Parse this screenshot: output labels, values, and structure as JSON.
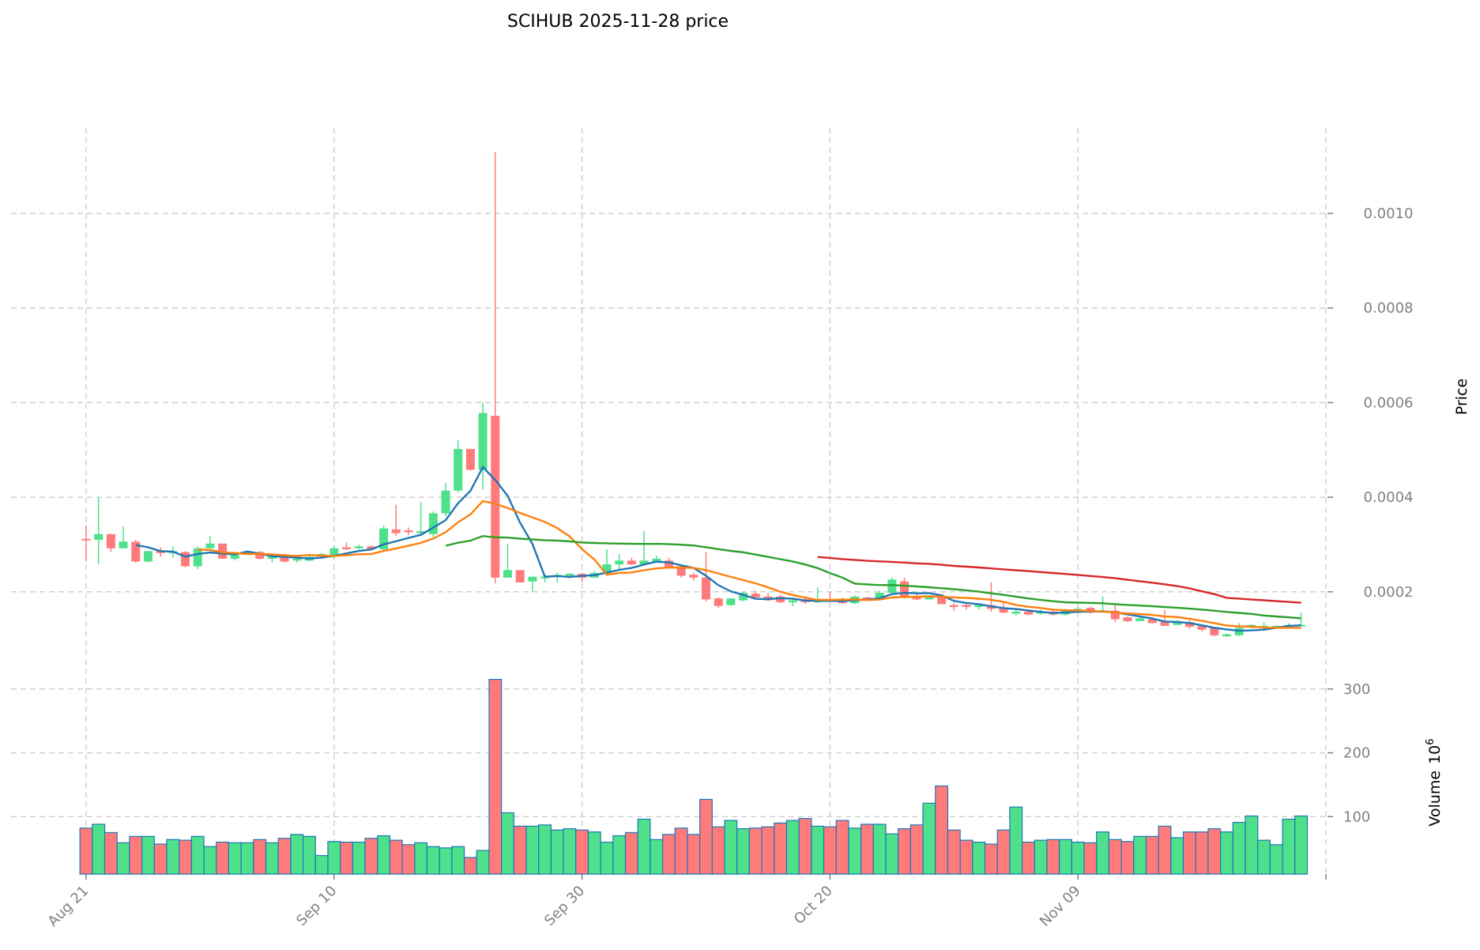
{
  "chart_data": {
    "type": "candlestick",
    "title": "SCIHUB  2025-11-28  price",
    "ylabel": "Price",
    "volume_label": "Volume",
    "volume_exponent": "10",
    "volume_exponent_power": "6",
    "ylim": [
      0,
      0.00118
    ],
    "volume_ylim": [
      10,
      320
    ],
    "start_date": "2025-08-21",
    "x_tick_labels": [
      {
        "index": 0,
        "label": "Aug 21"
      },
      {
        "index": 20,
        "label": "Sep 10"
      },
      {
        "index": 40,
        "label": "Sep 30"
      },
      {
        "index": 60,
        "label": "Oct 20"
      },
      {
        "index": 80,
        "label": "Nov 09"
      }
    ],
    "y_ticks": [
      {
        "value": 0.0002,
        "label": "0.0002"
      },
      {
        "value": 0.0004,
        "label": "0.0004"
      },
      {
        "value": 0.0006,
        "label": "0.0006"
      },
      {
        "value": 0.0008,
        "label": "0.0008"
      },
      {
        "value": 0.001,
        "label": "0.0010"
      }
    ],
    "volume_ticks": [
      {
        "value": 100,
        "label": "100"
      },
      {
        "value": 200,
        "label": "200"
      },
      {
        "value": 300,
        "label": "300"
      }
    ],
    "price_scale": 0.0001,
    "ohlc": [
      [
        3.12,
        3.1,
        3.4,
        2.64
      ],
      [
        3.1,
        3.22,
        4.0,
        2.58
      ],
      [
        3.22,
        2.92,
        3.22,
        2.84
      ],
      [
        2.92,
        3.06,
        3.38,
        2.92
      ],
      [
        3.06,
        2.64,
        3.1,
        2.62
      ],
      [
        2.64,
        2.86,
        2.86,
        2.62
      ],
      [
        2.88,
        2.82,
        2.94,
        2.74
      ],
      [
        2.82,
        2.86,
        2.96,
        2.72
      ],
      [
        2.84,
        2.54,
        2.86,
        2.52
      ],
      [
        2.54,
        2.92,
        2.96,
        2.48
      ],
      [
        2.92,
        3.02,
        3.18,
        2.92
      ],
      [
        3.02,
        2.7,
        3.02,
        2.7
      ],
      [
        2.7,
        2.78,
        2.84,
        2.66
      ],
      [
        2.8,
        2.84,
        2.86,
        2.78
      ],
      [
        2.84,
        2.7,
        2.86,
        2.68
      ],
      [
        2.7,
        2.74,
        2.76,
        2.62
      ],
      [
        2.76,
        2.64,
        2.8,
        2.62
      ],
      [
        2.66,
        2.7,
        2.72,
        2.62
      ],
      [
        2.66,
        2.74,
        2.8,
        2.64
      ],
      [
        2.76,
        2.8,
        2.82,
        2.74
      ],
      [
        2.76,
        2.92,
        2.98,
        2.7
      ],
      [
        2.94,
        2.9,
        3.04,
        2.88
      ],
      [
        2.92,
        2.96,
        3.0,
        2.9
      ],
      [
        2.96,
        2.9,
        2.98,
        2.88
      ],
      [
        2.9,
        3.34,
        3.4,
        2.86
      ],
      [
        3.32,
        3.24,
        3.84,
        3.18
      ],
      [
        3.3,
        3.26,
        3.36,
        3.2
      ],
      [
        3.24,
        3.28,
        3.9,
        3.2
      ],
      [
        3.22,
        3.66,
        3.7,
        3.16
      ],
      [
        3.66,
        4.14,
        4.3,
        3.6
      ],
      [
        4.14,
        5.02,
        5.2,
        4.1
      ],
      [
        5.02,
        4.58,
        5.02,
        4.56
      ],
      [
        4.58,
        5.78,
        6.0,
        4.16
      ],
      [
        5.72,
        2.3,
        11.3,
        2.18
      ],
      [
        2.3,
        2.46,
        3.02,
        2.44
      ],
      [
        2.46,
        2.2,
        2.46,
        2.2
      ],
      [
        2.22,
        2.32,
        2.32,
        2.0
      ],
      [
        2.3,
        2.32,
        2.38,
        2.2
      ],
      [
        2.32,
        2.36,
        2.4,
        2.2
      ],
      [
        2.34,
        2.38,
        2.4,
        2.28
      ],
      [
        2.38,
        2.3,
        2.4,
        2.2
      ],
      [
        2.3,
        2.4,
        2.44,
        2.3
      ],
      [
        2.42,
        2.58,
        2.9,
        2.42
      ],
      [
        2.58,
        2.66,
        2.8,
        2.46
      ],
      [
        2.66,
        2.58,
        2.72,
        2.56
      ],
      [
        2.58,
        2.66,
        3.28,
        2.56
      ],
      [
        2.64,
        2.7,
        2.76,
        2.64
      ],
      [
        2.66,
        2.52,
        2.72,
        2.5
      ],
      [
        2.54,
        2.34,
        2.58,
        2.3
      ],
      [
        2.36,
        2.3,
        2.4,
        2.24
      ],
      [
        2.3,
        1.84,
        2.84,
        1.8
      ],
      [
        1.86,
        1.7,
        1.88,
        1.66
      ],
      [
        1.72,
        1.86,
        1.86,
        1.7
      ],
      [
        1.82,
        1.98,
        2.0,
        1.8
      ],
      [
        1.96,
        1.88,
        2.02,
        1.84
      ],
      [
        1.9,
        1.82,
        1.98,
        1.8
      ],
      [
        1.9,
        1.78,
        1.94,
        1.76
      ],
      [
        1.78,
        1.82,
        1.86,
        1.7
      ],
      [
        1.84,
        1.78,
        1.9,
        1.74
      ],
      [
        1.78,
        1.84,
        2.1,
        1.76
      ],
      [
        1.84,
        1.82,
        2.0,
        1.8
      ],
      [
        1.84,
        1.76,
        1.88,
        1.74
      ],
      [
        1.76,
        1.9,
        1.92,
        1.74
      ],
      [
        1.88,
        1.86,
        1.9,
        1.84
      ],
      [
        1.86,
        1.98,
        2.02,
        1.84
      ],
      [
        1.98,
        2.26,
        2.3,
        1.96
      ],
      [
        2.22,
        1.9,
        2.3,
        1.86
      ],
      [
        1.9,
        1.84,
        1.96,
        1.82
      ],
      [
        1.84,
        1.88,
        1.92,
        1.84
      ],
      [
        1.9,
        1.74,
        1.9,
        1.74
      ],
      [
        1.72,
        1.68,
        1.76,
        1.6
      ],
      [
        1.72,
        1.68,
        1.76,
        1.62
      ],
      [
        1.68,
        1.72,
        1.74,
        1.62
      ],
      [
        1.72,
        1.64,
        2.2,
        1.58
      ],
      [
        1.66,
        1.56,
        1.8,
        1.54
      ],
      [
        1.54,
        1.58,
        1.62,
        1.5
      ],
      [
        1.58,
        1.52,
        1.62,
        1.5
      ],
      [
        1.54,
        1.58,
        1.62,
        1.52
      ],
      [
        1.58,
        1.52,
        1.62,
        1.5
      ],
      [
        1.52,
        1.62,
        1.64,
        1.5
      ],
      [
        1.6,
        1.64,
        1.7,
        1.58
      ],
      [
        1.66,
        1.56,
        1.68,
        1.54
      ],
      [
        1.56,
        1.6,
        1.9,
        1.56
      ],
      [
        1.6,
        1.42,
        1.76,
        1.36
      ],
      [
        1.46,
        1.38,
        1.48,
        1.36
      ],
      [
        1.38,
        1.44,
        1.46,
        1.38
      ],
      [
        1.42,
        1.34,
        1.46,
        1.32
      ],
      [
        1.38,
        1.28,
        1.62,
        1.28
      ],
      [
        1.3,
        1.38,
        1.4,
        1.3
      ],
      [
        1.36,
        1.26,
        1.4,
        1.22
      ],
      [
        1.28,
        1.2,
        1.3,
        1.16
      ],
      [
        1.24,
        1.08,
        1.26,
        1.06
      ],
      [
        1.06,
        1.1,
        1.12,
        1.04
      ],
      [
        1.08,
        1.24,
        1.34,
        1.06
      ],
      [
        1.26,
        1.3,
        1.32,
        1.22
      ],
      [
        1.24,
        1.28,
        1.36,
        1.22
      ],
      [
        1.26,
        1.28,
        1.3,
        1.26
      ],
      [
        1.28,
        1.3,
        1.34,
        1.26
      ],
      [
        1.28,
        1.3,
        1.56,
        1.26
      ]
    ],
    "volume": [
      82,
      88,
      75,
      59,
      69,
      69,
      57,
      64,
      63,
      69,
      53,
      60,
      59,
      59,
      64,
      59,
      66,
      72,
      69,
      39,
      61,
      60,
      60,
      66,
      70,
      63,
      56,
      59,
      53,
      51,
      53,
      36,
      47,
      315,
      106,
      85,
      85,
      87,
      79,
      81,
      79,
      76,
      60,
      70,
      75,
      96,
      64,
      72,
      82,
      72,
      127,
      84,
      94,
      81,
      82,
      84,
      90,
      94,
      97,
      85,
      84,
      94,
      82,
      88,
      88,
      73,
      81,
      87,
      121,
      148,
      79,
      63,
      60,
      57,
      79,
      115,
      60,
      63,
      64,
      64,
      60,
      59,
      76,
      64,
      61,
      69,
      69,
      85,
      67,
      76,
      76,
      81,
      76,
      91,
      101,
      63,
      56,
      96,
      101
    ],
    "moving_averages": [
      {
        "window": 5,
        "color": "#1f77b4"
      },
      {
        "window": 10,
        "color": "#ff7f0e"
      },
      {
        "window": 30,
        "color": "#2ca02c"
      },
      {
        "window": 60,
        "color": "#d62728"
      }
    ],
    "colors": {
      "up": "#4ee08a",
      "down": "#ff7b7b",
      "volume_edge": "#1f77b4",
      "grid": "#d0d0d0"
    }
  }
}
